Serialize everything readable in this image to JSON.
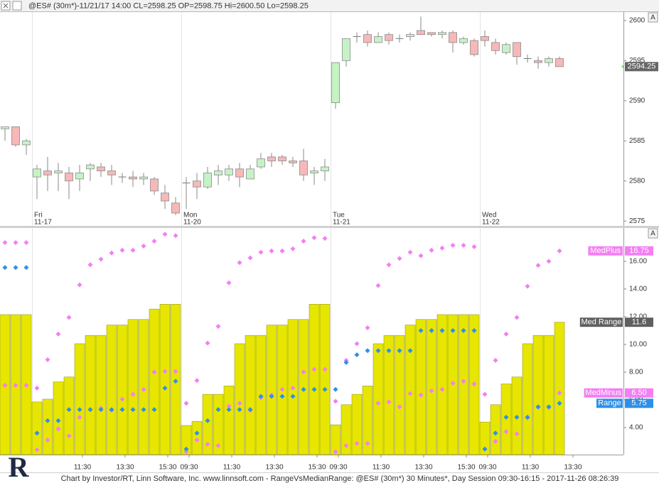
{
  "title": "@ES# (30m*)-11/21/17 14:00 CL=2598.25 OP=2598.75 Hi=2600.50 Lo=2598.25",
  "footer": "Chart by Investor/RT, Linn Software, Inc. www.linnsoft.com - RangeVsMedianRange: @ES# (30m*) 30 Minutes*, Day Session 09:30-16:15 - 2017-11-26 08:26:39",
  "logo": "R",
  "chart_data": [
    {
      "type": "candlestick",
      "scale_button": "A",
      "up_color": "#c6f3c6",
      "down_color": "#f6b8b8",
      "ylim": [
        2574.4,
        2601.05
      ],
      "yticks": [
        2575,
        2580,
        2585,
        2590,
        2595,
        2600
      ],
      "day_names": [
        null,
        null,
        null,
        "Fri",
        null,
        null,
        null,
        null,
        null,
        null,
        null,
        null,
        null,
        null,
        null,
        null,
        null,
        "Mon",
        null,
        null,
        null,
        null,
        null,
        null,
        null,
        null,
        null,
        null,
        null,
        null,
        null,
        "Tue",
        null,
        null,
        null,
        null,
        null,
        null,
        null,
        null,
        null,
        null,
        null,
        null,
        null,
        "Wed",
        null,
        null,
        null,
        null,
        null,
        null,
        null,
        null
      ],
      "day_dates": [
        null,
        null,
        null,
        "11-17",
        null,
        null,
        null,
        null,
        null,
        null,
        null,
        null,
        null,
        null,
        null,
        null,
        null,
        "11-20",
        null,
        null,
        null,
        null,
        null,
        null,
        null,
        null,
        null,
        null,
        null,
        null,
        null,
        "11-21",
        null,
        null,
        null,
        null,
        null,
        null,
        null,
        null,
        null,
        null,
        null,
        null,
        null,
        "11-22",
        null,
        null,
        null,
        null,
        null,
        null,
        null,
        null
      ],
      "open": [
        2586.5,
        2586.75,
        2584.5,
        2580.5,
        2581.25,
        2581,
        2581,
        2580.25,
        2581.5,
        2581.75,
        2581.25,
        2580.5,
        2580.5,
        2580.25,
        2580.25,
        2578.5,
        2577.25,
        2579.75,
        2580,
        2579.25,
        2580.75,
        2580.75,
        2581.5,
        2580.25,
        2581.75,
        2583,
        2583,
        2582.5,
        2582.5,
        2581,
        2581.25,
        2589.75,
        2595,
        2598,
        2598.25,
        2597.25,
        2598.25,
        2597.75,
        2598,
        2598.75,
        2598.5,
        2598.25,
        2598.5,
        2597.25,
        2597.5,
        2598,
        2597.25,
        2596,
        2597.25,
        2595.25,
        2595,
        2594.75,
        2595.25,
        null
      ],
      "high": [
        2586.75,
        2586.75,
        2585.25,
        2582,
        2583,
        2582.25,
        2581.75,
        2582,
        2582.25,
        2582.25,
        2582,
        2581,
        2581.25,
        2581,
        2580.5,
        2579.5,
        2578,
        2580.5,
        2581,
        2581.75,
        2582,
        2582,
        2582.25,
        2582,
        2583.5,
        2583.5,
        2583.25,
        2583,
        2584,
        2581.75,
        2582.75,
        2594.75,
        2597.75,
        2598.5,
        2598.75,
        2598.5,
        2598.5,
        2598.25,
        2598.5,
        2600.5,
        2598.5,
        2598.75,
        2598.75,
        2598,
        2597.75,
        2598.75,
        2597.75,
        2597.25,
        2597.25,
        2595.75,
        2595.5,
        2595.5,
        2595.5,
        null
      ],
      "low": [
        2585,
        2584.25,
        2583.25,
        2577.75,
        2578.75,
        2578.75,
        2577.75,
        2578.75,
        2580,
        2580.5,
        2579.5,
        2579.75,
        2579.25,
        2579.5,
        2578.25,
        2576.5,
        2575.75,
        2576.5,
        2577.75,
        2579,
        2579.5,
        2580,
        2579.25,
        2580.25,
        2581.5,
        2581.75,
        2582,
        2581.75,
        2580,
        2579.5,
        2580,
        2589,
        2594.25,
        2597.25,
        2596.75,
        2597.25,
        2597,
        2597.25,
        2597.5,
        2598.25,
        2598,
        2597.75,
        2596,
        2597,
        2595.5,
        2596.75,
        2595.75,
        2595.75,
        2594.5,
        2594.75,
        2594,
        2594.25,
        2594.25,
        null
      ],
      "close": [
        2586.75,
        2584.5,
        2585,
        2581.5,
        2580.75,
        2581.25,
        2580,
        2581,
        2582,
        2581.25,
        2580.75,
        2580.5,
        2580.25,
        2580.5,
        2578.75,
        2577.5,
        2576,
        2579.75,
        2579.25,
        2581,
        2581.25,
        2581.5,
        2580.5,
        2581.5,
        2582.75,
        2582.5,
        2582.5,
        2582.25,
        2580.75,
        2581.25,
        2581.75,
        2594.75,
        2597.75,
        2598,
        2597.25,
        2598,
        2597.5,
        2597.75,
        2598.25,
        2598.25,
        2598.25,
        2598.5,
        2597.25,
        2597.75,
        2595.75,
        2597.5,
        2596.25,
        2597,
        2595.5,
        2595.25,
        2594.75,
        2595.25,
        2594.25,
        null
      ]
    },
    {
      "type": "bar",
      "scale_button": "A",
      "ylim": [
        2.05,
        18.4
      ],
      "yticks": [
        {
          "value": 4,
          "label": "4.00"
        },
        {
          "value": 6,
          "label": "6.00"
        },
        {
          "value": 8,
          "label": "8.00"
        },
        {
          "value": 10,
          "label": "10.00"
        },
        {
          "value": 12,
          "label": "12.00"
        },
        {
          "value": 14,
          "label": "14.00"
        },
        {
          "value": 16,
          "label": "16.00"
        }
      ],
      "categories": [
        null,
        null,
        null,
        null,
        null,
        null,
        null,
        "11:30",
        null,
        null,
        null,
        "13:30",
        null,
        null,
        null,
        "15:30",
        null,
        "09:30",
        null,
        null,
        null,
        "11:30",
        null,
        null,
        null,
        "13:30",
        null,
        null,
        null,
        "15:30",
        null,
        "09:30",
        null,
        null,
        null,
        "11:30",
        null,
        null,
        null,
        "13:30",
        null,
        null,
        null,
        "15:30",
        null,
        "09:30",
        null,
        null,
        null,
        "11:30",
        null,
        null,
        null,
        "13:30"
      ],
      "series": [
        {
          "name": "Med Range",
          "style": "bar",
          "color": "#e6e600",
          "tag_color": "#5f5f5f",
          "values": [
            12.15,
            12.15,
            12.15,
            5.85,
            6.05,
            7.3,
            7.65,
            10.05,
            10.65,
            10.65,
            11.4,
            11.4,
            11.8,
            11.8,
            12.55,
            12.9,
            12.9,
            4.15,
            4.45,
            6.4,
            6.4,
            7.0,
            10.05,
            10.65,
            10.65,
            11.4,
            11.4,
            11.8,
            11.8,
            12.9,
            12.9,
            4.2,
            5.65,
            6.4,
            7.0,
            10.05,
            10.65,
            10.65,
            11.4,
            11.8,
            11.8,
            12.15,
            12.15,
            12.15,
            12.15,
            4.4,
            5.65,
            7.15,
            7.65,
            10.05,
            10.65,
            10.65,
            11.6,
            null
          ]
        },
        {
          "name": "MedPlus",
          "style": "dot",
          "color": "#f47ef4",
          "tag_color": "#f47ef4",
          "values": [
            17.35,
            17.35,
            17.35,
            6.85,
            8.9,
            10.75,
            11.95,
            14.3,
            15.75,
            16.15,
            16.6,
            16.8,
            16.8,
            17.1,
            17.45,
            17.95,
            17.85,
            5.75,
            7.4,
            10.1,
            11.3,
            14.45,
            15.9,
            16.25,
            16.65,
            16.75,
            16.75,
            16.9,
            17.45,
            17.7,
            17.65,
            5.9,
            8.85,
            10.05,
            11.2,
            14.25,
            15.75,
            16.2,
            16.65,
            16.4,
            16.8,
            16.95,
            17.15,
            17.15,
            17.05,
            6.4,
            8.85,
            10.75,
            11.95,
            14.2,
            15.7,
            16.0,
            16.75,
            null
          ]
        },
        {
          "name": "MedMinus",
          "style": "dot",
          "color": "#f47ef4",
          "tag_color": "#f47ef4",
          "values": [
            7.05,
            7.05,
            7.05,
            2.4,
            3.1,
            3.9,
            3.4,
            4.75,
            5.3,
            5.4,
            5.25,
            6.05,
            6.4,
            6.75,
            8.0,
            8.05,
            8.05,
            2.25,
            3.1,
            2.8,
            2.7,
            5.55,
            5.75,
            5.25,
            6.15,
            6.35,
            6.75,
            6.85,
            8.0,
            8.2,
            8.2,
            2.25,
            2.7,
            2.85,
            2.85,
            5.75,
            5.85,
            5.5,
            6.45,
            6.35,
            6.65,
            6.75,
            7.2,
            7.35,
            7.15,
            2.45,
            3.0,
            3.7,
            3.55,
            4.7,
            5.45,
            5.45,
            6.5,
            null
          ],
          "value_labels": [
            null,
            null,
            null,
            null,
            null,
            null,
            null,
            null,
            null,
            null,
            null,
            null,
            null,
            null,
            null,
            null,
            null,
            null,
            null,
            null,
            null,
            null,
            null,
            null,
            null,
            null,
            null,
            null,
            null,
            null,
            null,
            null,
            null,
            null,
            null,
            null,
            null,
            null,
            null,
            null,
            null,
            null,
            null,
            null,
            null,
            null,
            null,
            null,
            null,
            null,
            null,
            null,
            "6.50",
            null
          ]
        },
        {
          "name": "Range",
          "style": "dot",
          "color": "#2f8fe8",
          "tag_color": "#2f8fe8",
          "values": [
            15.55,
            15.55,
            15.55,
            3.6,
            4.5,
            4.5,
            5.3,
            5.3,
            5.3,
            5.3,
            5.3,
            5.3,
            5.3,
            5.3,
            5.3,
            6.85,
            7.35,
            2.45,
            3.6,
            4.5,
            5.3,
            5.3,
            5.3,
            5.3,
            6.25,
            6.25,
            6.25,
            6.25,
            6.75,
            6.75,
            6.75,
            6.75,
            8.7,
            9.25,
            9.55,
            9.55,
            9.55,
            9.55,
            9.55,
            11.0,
            11.0,
            11.0,
            11.0,
            11.0,
            11.0,
            2.45,
            3.6,
            4.75,
            4.75,
            4.75,
            5.5,
            5.5,
            5.75,
            null
          ]
        }
      ]
    }
  ]
}
